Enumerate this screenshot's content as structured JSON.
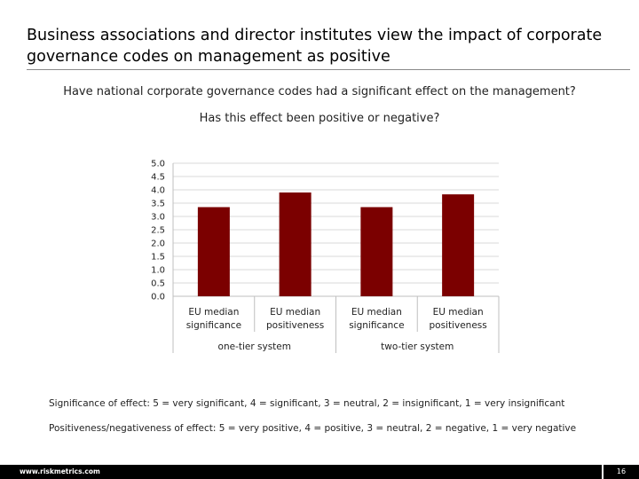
{
  "title": "Business associations and director institutes view the impact of corporate governance codes on management as positive",
  "subtitle_line1": "Have national corporate governance codes had a significant effect on the management?",
  "subtitle_line2": "Has this effect been positive or negative?",
  "chart_data": {
    "type": "bar",
    "ylim": [
      0,
      5
    ],
    "yticks": [
      "0.0",
      "0.5",
      "1.0",
      "1.5",
      "2.0",
      "2.5",
      "3.0",
      "3.5",
      "4.0",
      "4.5",
      "5.0"
    ],
    "categories": [
      [
        "EU median",
        "significance"
      ],
      [
        "EU median",
        "positiveness"
      ],
      [
        "EU median",
        "significance"
      ],
      [
        "EU median",
        "positiveness"
      ]
    ],
    "values": [
      3.35,
      3.9,
      3.35,
      3.83
    ],
    "groups": [
      "one-tier system",
      "two-tier system"
    ],
    "bar_color": "#7b0000",
    "grid": true
  },
  "notes": {
    "significance": "Significance of effect: 5 = very significant, 4 = significant, 3 = neutral, 2 = insignificant, 1 = very insignificant",
    "positiveness": "Positiveness/negativeness of effect: 5 = very positive, 4 = positive, 3 = neutral, 2 = negative, 1 = very negative"
  },
  "footer": {
    "url": "www.riskmetrics.com",
    "page": "16"
  }
}
